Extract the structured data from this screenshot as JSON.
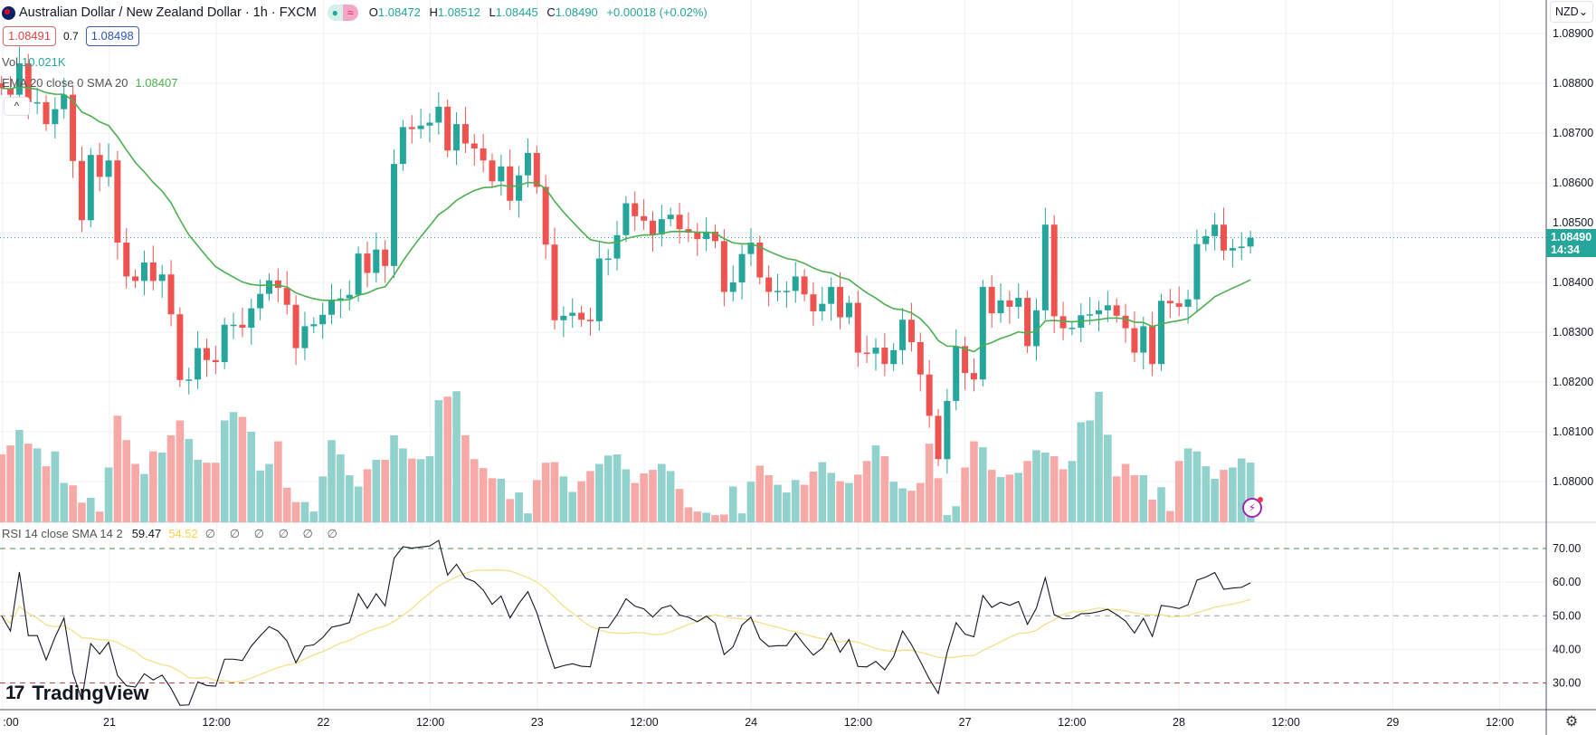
{
  "header": {
    "symbol_title": "Australian Dollar / New Zealand Dollar · 1h · FXCM",
    "status_dot": "●",
    "status_wave": "≈",
    "ohlc": {
      "o_label": "O",
      "o": "1.08472",
      "h_label": "H",
      "h": "1.08512",
      "l_label": "L",
      "l": "1.08445",
      "c_label": "C",
      "c": "1.08490",
      "change": "+0.00018 (+0.02%)"
    },
    "sell_price": "1.08491",
    "spread": "0.7",
    "buy_price": "1.08498"
  },
  "legend": {
    "vol_label": "Vol",
    "vol_value": "10.021K",
    "ema_label": "EMA 20 close 0 SMA 20",
    "ema_value": "1.08407",
    "collapse_icon": "^",
    "rsi_label": "RSI 14 close SMA 14 2",
    "rsi_value": "59.47",
    "rsi_sma_value": "54.52",
    "rsi_extra": "∅ ∅ ∅ ∅ ∅ ∅"
  },
  "price_axis": {
    "currency": "NZD",
    "currency_caret": "⌄",
    "current_price": "1.08490",
    "countdown": "14:34"
  },
  "branding": {
    "logo_mark": "17",
    "logo_text": "TradingView"
  },
  "icons": {
    "settings": "⚙",
    "lightning": "⚡"
  },
  "colors": {
    "up": "#26a69a",
    "down": "#ef5350",
    "vol_up": "#92d2cc",
    "vol_down": "#f7a9a7",
    "ema": "#4caf50",
    "rsi": "#131722",
    "rsi_sma": "#f5e08a"
  },
  "chart_data": {
    "type": "candlestick",
    "title": "Australian Dollar / New Zealand Dollar · 1h · FXCM",
    "price_range": [
      1.0794,
      1.0907
    ],
    "price_ticks": [
      "1.08000",
      "1.08100",
      "1.08200",
      "1.08300",
      "1.08400",
      "1.08500",
      "1.08600",
      "1.08700",
      "1.08800",
      "1.08900"
    ],
    "time_ticks": [
      ":00",
      "21",
      "12:00",
      "22",
      "12:00",
      "23",
      "12:00",
      "24",
      "12:00",
      "27",
      "12:00",
      "28",
      "12:00",
      "29",
      "12:00"
    ],
    "rsi_ticks": [
      "30.00",
      "40.00",
      "50.00",
      "60.00",
      "70.00"
    ],
    "rsi_bands": {
      "upper": 70,
      "middle": 50,
      "lower": 30
    },
    "grid": true,
    "close": [
      1.0879,
      1.08777,
      1.0884,
      1.08762,
      1.08762,
      1.08718,
      1.08748,
      1.08777,
      1.08644,
      1.08525,
      1.08656,
      1.08612,
      1.08645,
      1.0848,
      1.08412,
      1.08403,
      1.0844,
      1.08403,
      1.08416,
      1.08336,
      1.08204,
      1.08205,
      1.08268,
      1.08244,
      1.0824,
      1.08315,
      1.08315,
      1.08309,
      1.08348,
      1.08377,
      1.08404,
      1.08389,
      1.08355,
      1.08268,
      1.08312,
      1.08316,
      1.08335,
      1.08363,
      1.08368,
      1.08375,
      1.08458,
      1.08419,
      1.08466,
      1.08433,
      1.08638,
      1.08712,
      1.08708,
      1.08715,
      1.08721,
      1.08753,
      1.08665,
      1.08718,
      1.08679,
      1.08669,
      1.08645,
      1.08603,
      1.08633,
      1.08564,
      1.08615,
      1.0866,
      1.08592,
      1.08476,
      1.08324,
      1.08333,
      1.08339,
      1.08325,
      1.08322,
      1.08448,
      1.08448,
      1.08495,
      1.08559,
      1.08533,
      1.08524,
      1.08496,
      1.08527,
      1.08536,
      1.08507,
      1.085,
      1.08487,
      1.08502,
      1.08483,
      1.08381,
      1.084,
      1.08457,
      1.0848,
      1.0841,
      1.08381,
      1.08383,
      1.08383,
      1.08412,
      1.08376,
      1.08342,
      1.08357,
      1.08391,
      1.0833,
      1.08359,
      1.08259,
      1.08257,
      1.08269,
      1.08236,
      1.08264,
      1.08325,
      1.0828,
      1.08215,
      1.08132,
      1.08045,
      1.08162,
      1.08272,
      1.08218,
      1.08205,
      1.08391,
      1.08338,
      1.08364,
      1.08351,
      1.08369,
      1.08272,
      1.08344,
      1.08516,
      1.08332,
      1.08308,
      1.08309,
      1.08334,
      1.08336,
      1.08344,
      1.08354,
      1.08333,
      1.08308,
      1.08259,
      1.08312,
      1.08236,
      1.08363,
      1.08358,
      1.08351,
      1.08366,
      1.08477,
      1.08493,
      1.08516,
      1.08464,
      1.08469,
      1.08472,
      1.0849
    ],
    "volume_k": [
      11.4,
      12.9,
      15.5,
      13.2,
      12.4,
      9.4,
      11.9,
      6.6,
      6.2,
      3.3,
      4.1,
      1.8,
      9.2,
      17.9,
      13.8,
      9.8,
      8.1,
      11.9,
      11.7,
      14.6,
      17.1,
      14.0,
      10.5,
      10.0,
      10.0,
      17.1,
      18.5,
      17.7,
      15.2,
      8.7,
      9.8,
      13.6,
      5.8,
      3.4,
      3.4,
      1.8,
      7.7,
      13.8,
      11.4,
      7.9,
      6.0,
      8.9,
      10.5,
      10.5,
      14.6,
      12.4,
      10.7,
      10.6,
      11.1,
      20.5,
      21.1,
      22.0,
      14.6,
      10.6,
      9.1,
      7.4,
      7.3,
      3.9,
      5.0,
      1.5,
      7.1,
      10.0,
      10.1,
      7.7,
      5.1,
      6.9,
      8.6,
      9.8,
      11.2,
      11.4,
      8.9,
      6.6,
      8.2,
      8.8,
      9.8,
      8.6,
      5.6,
      2.5,
      1.8,
      1.6,
      1.2,
      1.3,
      6.0,
      1.5,
      6.8,
      9.5,
      7.9,
      6.3,
      5.0,
      7.1,
      6.3,
      8.5,
      10.1,
      8.3,
      6.9,
      6.6,
      8.0,
      10.3,
      12.9,
      11.1,
      6.8,
      5.7,
      5.3,
      6.6,
      13.2,
      7.4,
      1.2,
      2.7,
      9.2,
      13.6,
      12.6,
      8.8,
      7.6,
      8.0,
      8.3,
      10.3,
      12.1,
      11.7,
      11.1,
      8.9,
      10.3,
      16.8,
      17.1,
      21.9,
      14.7,
      7.7,
      9.8,
      7.9,
      7.9,
      3.8,
      5.9,
      1.9,
      10.3,
      12.4,
      11.9,
      9.4,
      7.3,
      8.8,
      9.2,
      10.7,
      10.021
    ],
    "last_ohlc": {
      "open": 1.08472,
      "high": 1.08512,
      "low": 1.08445,
      "close": 1.0849
    },
    "indicators": [
      "EMA 20 close 0 SMA 20",
      "RSI 14 close SMA 14"
    ]
  }
}
